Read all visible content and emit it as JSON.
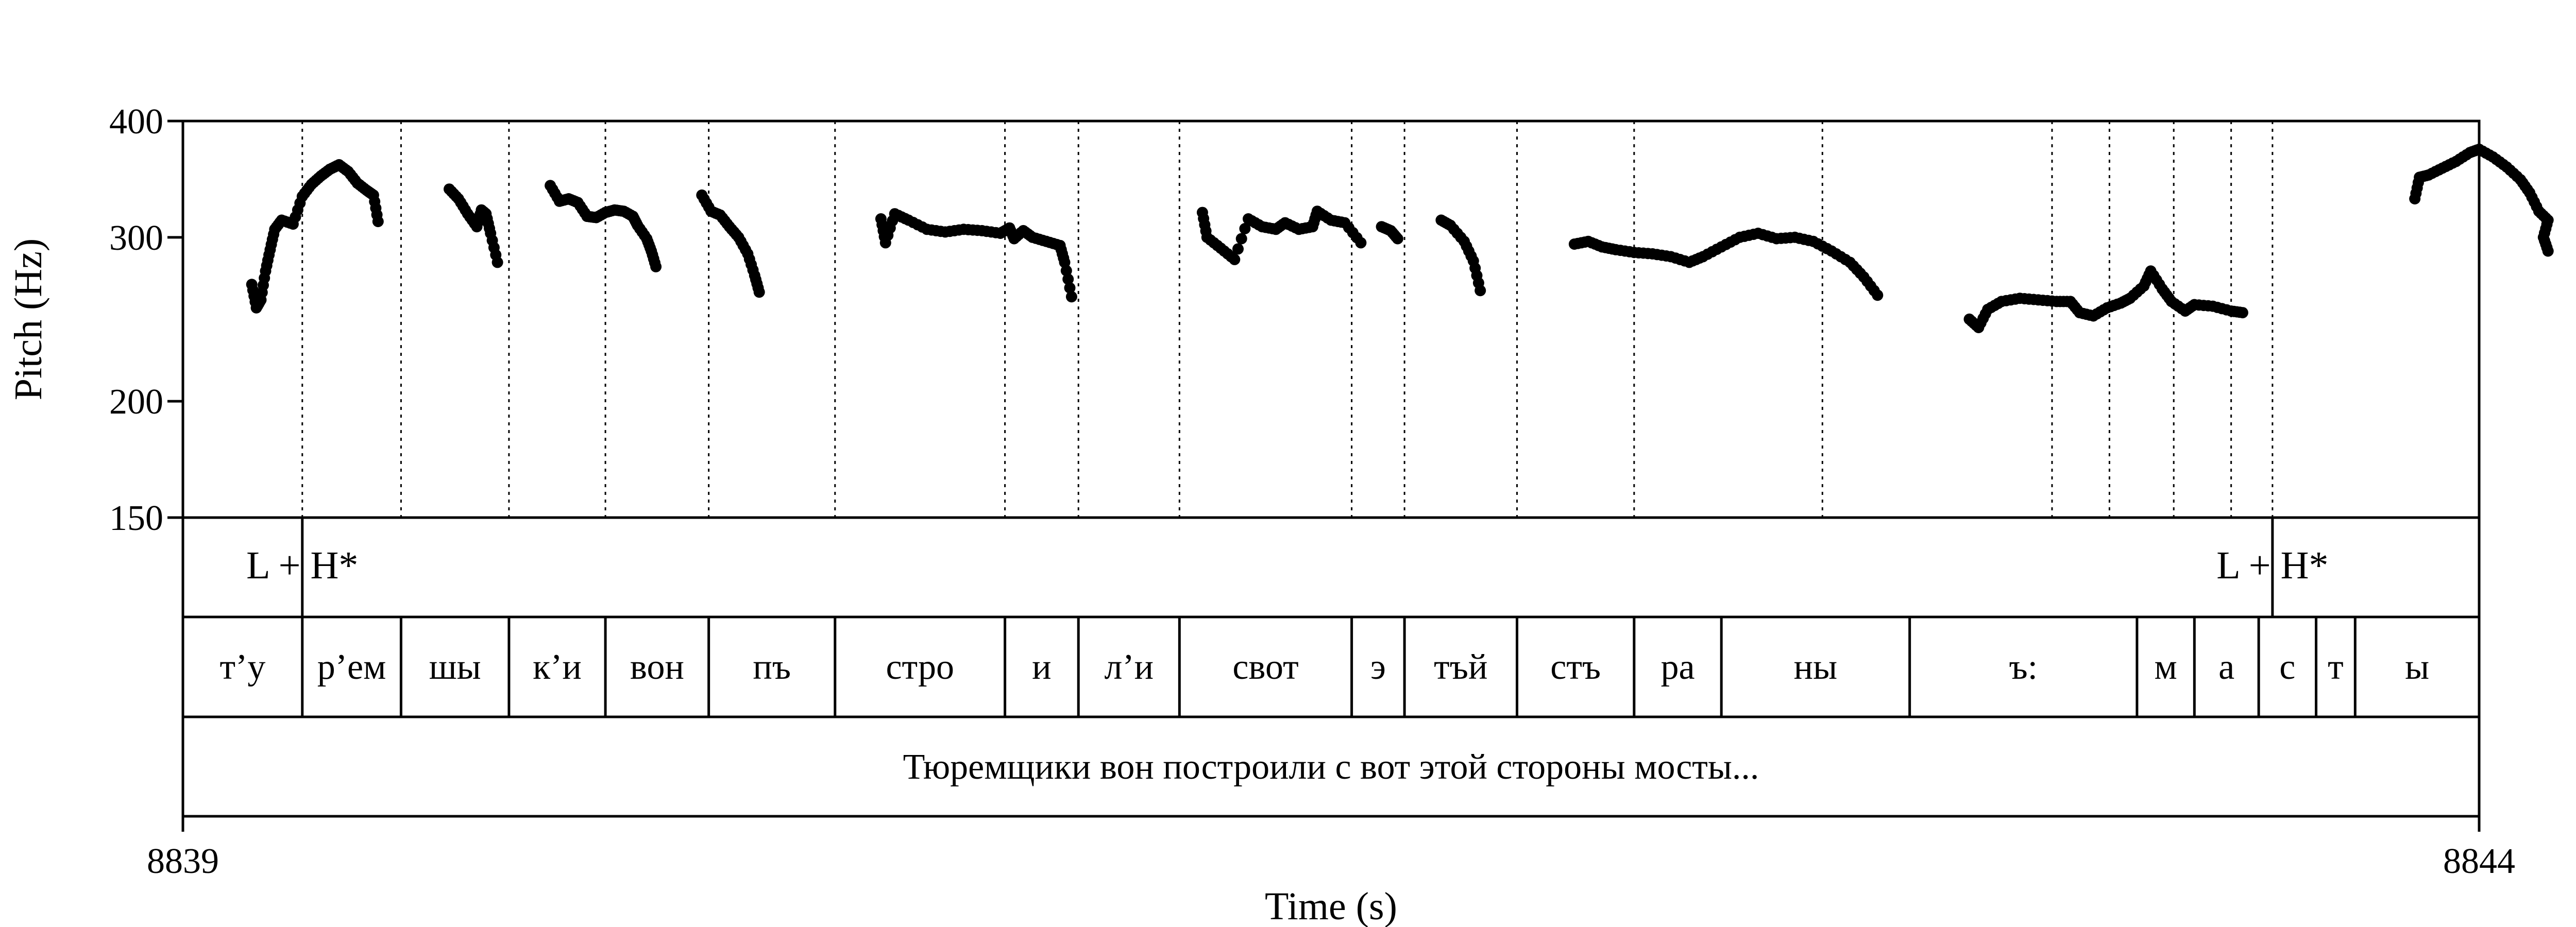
{
  "chart_data": {
    "type": "scatter",
    "xlabel": "Time (s)",
    "ylabel": "Pitch (Hz)",
    "xlim": [
      8839,
      8844
    ],
    "x_tick_labels": [
      "8839",
      "8844"
    ],
    "ylim": [
      150,
      400
    ],
    "y_scale": "log",
    "y_ticks": [
      150,
      200,
      300,
      400
    ],
    "y_tick_labels": [
      "150",
      "200",
      "300",
      "400"
    ],
    "grid": false,
    "series": [
      {
        "segments": [
          [
            [
              8839.15,
              267
            ],
            [
              8839.16,
              252
            ],
            [
              8839.17,
              257
            ],
            [
              8839.18,
              276
            ],
            [
              8839.19,
              291
            ],
            [
              8839.2,
              306
            ],
            [
              8839.215,
              313
            ],
            [
              8839.24,
              310
            ],
            [
              8839.26,
              332
            ],
            [
              8839.28,
              342
            ],
            [
              8839.3,
              349
            ],
            [
              8839.32,
              355
            ],
            [
              8839.34,
              359
            ],
            [
              8839.36,
              353
            ],
            [
              8839.38,
              343
            ],
            [
              8839.4,
              337
            ],
            [
              8839.415,
              333
            ],
            [
              8839.425,
              312
            ]
          ],
          [
            [
              8839.58,
              338
            ],
            [
              8839.6,
              330
            ],
            [
              8839.62,
              318
            ],
            [
              8839.64,
              308
            ],
            [
              8839.65,
              321
            ],
            [
              8839.66,
              318
            ],
            [
              8839.67,
              303
            ],
            [
              8839.685,
              282
            ]
          ],
          [
            [
              8839.8,
              341
            ],
            [
              8839.82,
              328
            ],
            [
              8839.84,
              330
            ],
            [
              8839.86,
              327
            ],
            [
              8839.88,
              316
            ],
            [
              8839.9,
              315
            ],
            [
              8839.92,
              319
            ],
            [
              8839.94,
              321
            ],
            [
              8839.96,
              320
            ],
            [
              8839.98,
              316
            ],
            [
              8839.99,
              309
            ],
            [
              8840.01,
              299
            ],
            [
              8840.02,
              290
            ],
            [
              8840.03,
              279
            ]
          ],
          [
            [
              8840.13,
              333
            ],
            [
              8840.15,
              320
            ],
            [
              8840.17,
              317
            ],
            [
              8840.19,
              308
            ],
            [
              8840.21,
              300
            ],
            [
              8840.23,
              288
            ],
            [
              8840.245,
              273
            ],
            [
              8840.255,
              262
            ]
          ],
          [
            [
              8840.52,
              314
            ],
            [
              8840.53,
              296
            ],
            [
              8840.55,
              318
            ],
            [
              8840.58,
              313
            ],
            [
              8840.62,
              306
            ],
            [
              8840.66,
              304
            ],
            [
              8840.7,
              306
            ],
            [
              8840.74,
              305
            ],
            [
              8840.78,
              303
            ],
            [
              8840.8,
              307
            ],
            [
              8840.81,
              299
            ],
            [
              8840.83,
              305
            ],
            [
              8840.85,
              300
            ],
            [
              8840.88,
              297
            ],
            [
              8840.91,
              294
            ],
            [
              8840.92,
              282
            ],
            [
              8840.935,
              259
            ]
          ],
          [
            [
              8841.22,
              319
            ],
            [
              8841.23,
              300
            ],
            [
              8841.26,
              292
            ],
            [
              8841.29,
              284
            ],
            [
              8841.32,
              314
            ],
            [
              8841.35,
              308
            ],
            [
              8841.38,
              306
            ],
            [
              8841.4,
              311
            ],
            [
              8841.43,
              306
            ],
            [
              8841.46,
              308
            ],
            [
              8841.47,
              320
            ],
            [
              8841.5,
              313
            ],
            [
              8841.53,
              311
            ],
            [
              8841.565,
              296
            ]
          ],
          [
            [
              8841.61,
              308
            ],
            [
              8841.63,
              305
            ],
            [
              8841.645,
              299
            ]
          ],
          [
            [
              8841.74,
              313
            ],
            [
              8841.76,
              309
            ],
            [
              8841.79,
              297
            ],
            [
              8841.81,
              283
            ],
            [
              8841.825,
              263
            ]
          ],
          [
            [
              8842.03,
              295
            ],
            [
              8842.06,
              297
            ],
            [
              8842.09,
              293
            ],
            [
              8842.12,
              291
            ],
            [
              8842.16,
              289
            ],
            [
              8842.2,
              288
            ],
            [
              8842.24,
              286
            ],
            [
              8842.28,
              282
            ],
            [
              8842.31,
              286
            ],
            [
              8842.35,
              293
            ],
            [
              8842.39,
              300
            ],
            [
              8842.43,
              303
            ],
            [
              8842.47,
              299
            ],
            [
              8842.51,
              300
            ],
            [
              8842.55,
              297
            ],
            [
              8842.59,
              290
            ],
            [
              8842.63,
              282
            ],
            [
              8842.66,
              272
            ],
            [
              8842.69,
              260
            ]
          ],
          [
            [
              8842.89,
              245
            ],
            [
              8842.91,
              240
            ],
            [
              8842.93,
              251
            ],
            [
              8842.96,
              256
            ],
            [
              8843.0,
              258
            ],
            [
              8843.04,
              257
            ],
            [
              8843.08,
              256
            ],
            [
              8843.11,
              256
            ],
            [
              8843.13,
              249
            ],
            [
              8843.16,
              247
            ],
            [
              8843.19,
              252
            ],
            [
              8843.22,
              255
            ],
            [
              8843.24,
              258
            ],
            [
              8843.27,
              266
            ],
            [
              8843.285,
              276
            ],
            [
              8843.31,
              264
            ],
            [
              8843.33,
              256
            ],
            [
              8843.36,
              250
            ],
            [
              8843.38,
              254
            ],
            [
              8843.42,
              253
            ],
            [
              8843.46,
              250
            ],
            [
              8843.485,
              249
            ]
          ],
          [
            [
              8843.86,
              330
            ],
            [
              8843.87,
              348
            ],
            [
              8843.89,
              350
            ],
            [
              8843.92,
              356
            ],
            [
              8843.95,
              362
            ],
            [
              8843.98,
              370
            ],
            [
              8844.0,
              373
            ],
            [
              8844.03,
              366
            ],
            [
              8844.06,
              357
            ],
            [
              8844.09,
              346
            ],
            [
              8844.11,
              335
            ],
            [
              8844.13,
              320
            ],
            [
              8844.15,
              313
            ],
            [
              8844.14,
              300
            ],
            [
              8844.15,
              290
            ]
          ]
        ]
      }
    ],
    "boundaries": [
      8839.26,
      8839.475,
      8839.71,
      8839.92,
      8840.145,
      8840.42,
      8840.79,
      8840.95,
      8841.17,
      8841.545,
      8841.66,
      8841.905,
      8842.16,
      8842.57,
      8843.07,
      8843.195,
      8843.335,
      8843.46,
      8843.55
    ],
    "tiers": {
      "tones": [
        {
          "label": "L + H*",
          "time": 8839.26
        },
        {
          "label": "L + H*",
          "time": 8843.55
        }
      ],
      "syllables": [
        {
          "label": "т’у",
          "start": 8839.0,
          "end": 8839.26
        },
        {
          "label": "р’ем",
          "start": 8839.26,
          "end": 8839.475
        },
        {
          "label": "шы",
          "start": 8839.475,
          "end": 8839.71
        },
        {
          "label": "к’и",
          "start": 8839.71,
          "end": 8839.92
        },
        {
          "label": "вон",
          "start": 8839.92,
          "end": 8840.145
        },
        {
          "label": "пъ",
          "start": 8840.145,
          "end": 8840.42
        },
        {
          "label": "стро",
          "start": 8840.42,
          "end": 8840.79
        },
        {
          "label": "и",
          "start": 8840.79,
          "end": 8840.95
        },
        {
          "label": "л’и",
          "start": 8840.95,
          "end": 8841.17
        },
        {
          "label": "свот",
          "start": 8841.17,
          "end": 8841.545
        },
        {
          "label": "э",
          "start": 8841.545,
          "end": 8841.66
        },
        {
          "label": "тъй",
          "start": 8841.66,
          "end": 8841.905
        },
        {
          "label": "стъ",
          "start": 8841.905,
          "end": 8842.16
        },
        {
          "label": "ра",
          "start": 8842.16,
          "end": 8842.35
        },
        {
          "label": "ны",
          "start": 8842.35,
          "end": 8842.76
        },
        {
          "label": "ъ:",
          "start": 8842.76,
          "end": 8843.255
        },
        {
          "label": "м",
          "start": 8843.255,
          "end": 8843.38
        },
        {
          "label": "а",
          "start": 8843.38,
          "end": 8843.52
        },
        {
          "label": "с",
          "start": 8843.52,
          "end": 8843.645
        },
        {
          "label": "т",
          "start": 8843.645,
          "end": 8843.73
        },
        {
          "label": "ы",
          "start": 8843.73,
          "end": 8844.0
        }
      ],
      "phrase": {
        "label": "Тюремщики вон построили с вот этой стороны мосты...",
        "start": 8839.0,
        "end": 8844.0
      }
    }
  }
}
